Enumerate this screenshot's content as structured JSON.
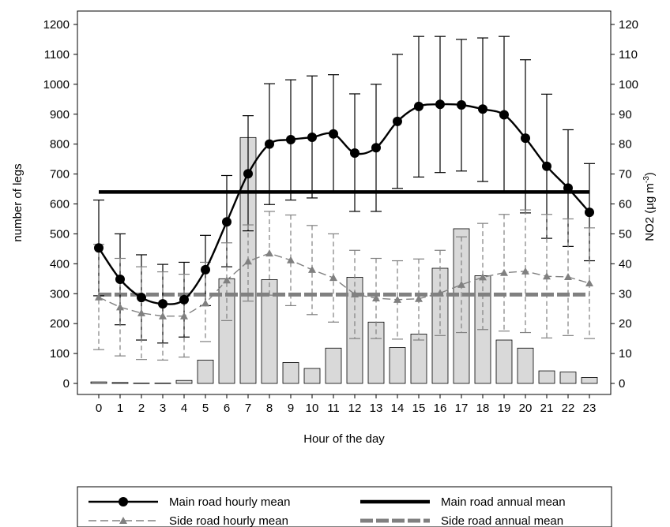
{
  "chart_data": {
    "type": "bar",
    "xlabel": "Hour of the day",
    "ylabel": "number of legs",
    "ylabel_right": "NO2 (µg m",
    "ylabel_right_sup": "-3",
    "ylabel_right_close": ")",
    "categories": [
      "0",
      "1",
      "2",
      "3",
      "4",
      "5",
      "6",
      "7",
      "8",
      "9",
      "10",
      "11",
      "12",
      "13",
      "14",
      "15",
      "16",
      "17",
      "18",
      "19",
      "20",
      "21",
      "22",
      "23"
    ],
    "ylim": [
      0,
      1200
    ],
    "yticks": [
      "0",
      "100",
      "200",
      "300",
      "400",
      "500",
      "600",
      "700",
      "800",
      "900",
      "1000",
      "1100",
      "1200"
    ],
    "ylim_right": [
      0,
      120
    ],
    "yticks_right": [
      "0",
      "10",
      "20",
      "30",
      "40",
      "50",
      "60",
      "70",
      "80",
      "90",
      "100",
      "110",
      "120"
    ],
    "bars": {
      "axis": "left",
      "color": "#d9d9d9",
      "values": [
        5,
        3,
        1,
        1,
        10,
        78,
        350,
        822,
        347,
        70,
        50,
        118,
        355,
        205,
        120,
        165,
        385,
        517,
        360,
        145,
        118,
        42,
        38,
        20
      ]
    },
    "series": [
      {
        "name": "Main road hourly mean",
        "axis": "right",
        "color": "#000000",
        "marker": "circle",
        "dashed": false,
        "values": [
          45.3,
          34.8,
          28.7,
          26.6,
          28.0,
          38.0,
          54.0,
          70.1,
          80.0,
          81.5,
          82.3,
          83.4,
          77.0,
          78.8,
          87.6,
          92.6,
          93.3,
          93.1,
          91.7,
          89.8,
          82.0,
          72.6,
          65.3,
          57.2
        ],
        "err_upper": [
          61.3,
          50.0,
          43.0,
          39.8,
          40.5,
          49.5,
          69.5,
          89.5,
          100.2,
          101.5,
          102.8,
          103.2,
          96.8,
          100.0,
          110.0,
          116.0,
          116.0,
          115.0,
          115.5,
          116.0,
          108.2,
          96.7,
          84.8,
          73.5
        ],
        "err_lower": [
          29.3,
          19.6,
          14.5,
          13.5,
          15.5,
          26.0,
          39.0,
          51.0,
          59.8,
          61.3,
          62.0,
          64.0,
          57.5,
          57.5,
          65.2,
          69.0,
          70.5,
          71.0,
          67.5,
          64.0,
          57.0,
          48.5,
          45.8,
          41.0
        ]
      },
      {
        "name": "Side road hourly mean",
        "axis": "right",
        "color": "#808080",
        "marker": "triangle",
        "dashed": true,
        "values": [
          28.8,
          25.5,
          23.5,
          22.5,
          22.5,
          26.8,
          34.5,
          40.8,
          43.5,
          41.2,
          38.0,
          35.3,
          29.8,
          28.5,
          28.0,
          28.3,
          30.2,
          33.0,
          35.5,
          37.0,
          37.5,
          35.8,
          35.6,
          33.5
        ],
        "err_upper": [
          46.5,
          41.8,
          39.0,
          37.3,
          36.5,
          40.5,
          47.0,
          53.0,
          57.5,
          56.3,
          52.8,
          50.0,
          44.5,
          41.8,
          41.0,
          41.6,
          44.5,
          49.0,
          53.5,
          56.5,
          58.0,
          56.5,
          55.0,
          52.0
        ],
        "err_lower": [
          11.3,
          9.2,
          8.0,
          7.8,
          8.8,
          14.0,
          21.0,
          27.5,
          29.5,
          26.0,
          23.0,
          20.5,
          15.0,
          15.0,
          14.8,
          14.5,
          16.0,
          17.0,
          18.0,
          17.5,
          17.0,
          15.2,
          16.0,
          15.0
        ]
      },
      {
        "name": "Main road annual mean",
        "axis": "right",
        "color": "#000000",
        "type": "hline",
        "value": 64.0
      },
      {
        "name": "Side road annual mean",
        "axis": "right",
        "color": "#808080",
        "type": "hline",
        "dashed": true,
        "value": 29.7
      }
    ],
    "legend": {
      "placement": "bottom",
      "entries": [
        "Main road hourly mean",
        "Main road annual mean",
        "Side road hourly mean",
        "Side road annual mean"
      ]
    },
    "grid": false
  }
}
